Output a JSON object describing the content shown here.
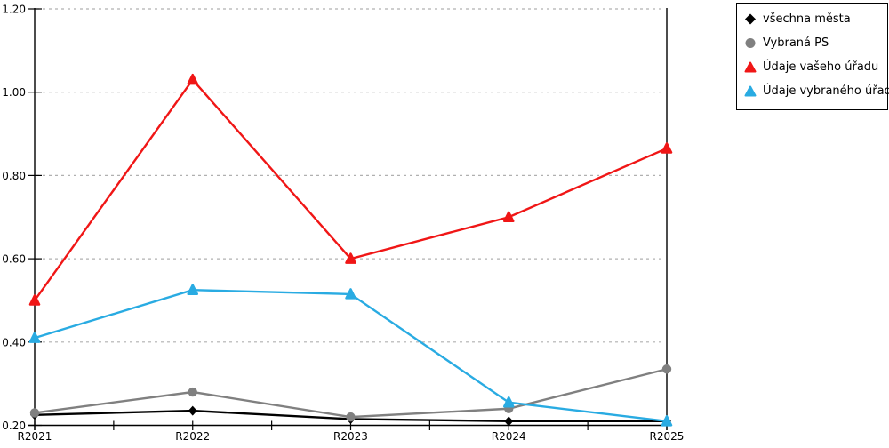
{
  "chart_data": {
    "type": "line",
    "title": "",
    "xlabel": "",
    "ylabel": "",
    "categories": [
      "R2021",
      "R2022",
      "R2023",
      "R2024",
      "R2025"
    ],
    "ylim": [
      0.2,
      1.2
    ],
    "yticks": [
      0.2,
      0.4,
      0.6,
      0.8,
      1.0,
      1.2
    ],
    "ytick_labels": [
      "0.20",
      "0.40",
      "0.60",
      "0.80",
      "1.00",
      "1.20"
    ],
    "grid": "horizontal-dashed",
    "legend_position": "top-right",
    "style": {
      "grid_color": "#b0b0b0",
      "axis_color": "#000000",
      "background": "#ffffff"
    },
    "series": [
      {
        "name": "všechna města",
        "marker": "diamond",
        "color": "#000000",
        "values": [
          0.225,
          0.235,
          0.215,
          0.21,
          0.21
        ]
      },
      {
        "name": "Vybraná PS",
        "marker": "circle",
        "color": "#808080",
        "values": [
          0.23,
          0.28,
          0.22,
          0.24,
          0.335
        ]
      },
      {
        "name": "Údaje vašeho úřadu",
        "marker": "triangle",
        "color": "#f01616",
        "values": [
          0.5,
          1.03,
          0.6,
          0.7,
          0.865
        ]
      },
      {
        "name": "Údaje vybraného úřadu",
        "marker": "triangle",
        "color": "#29abe2",
        "values": [
          0.41,
          0.525,
          0.515,
          0.255,
          0.21
        ]
      }
    ]
  }
}
